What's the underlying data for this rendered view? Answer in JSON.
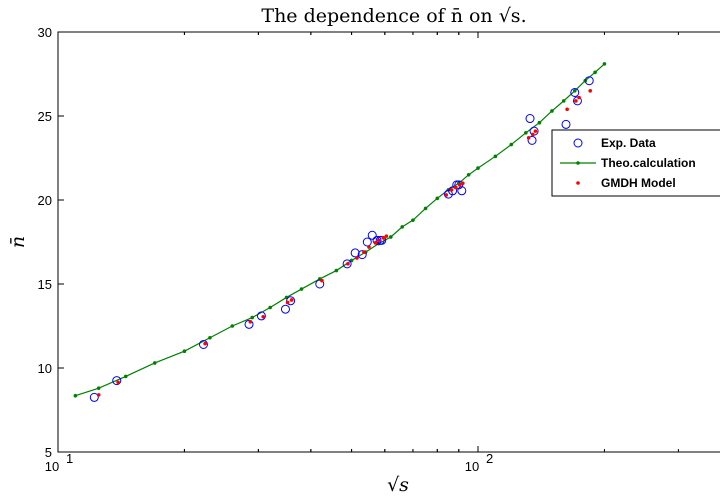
{
  "chart_data": {
    "type": "line",
    "title": "The dependence of n̄ on √s.",
    "xlabel": "√s",
    "ylabel": "n̄",
    "xscale": "log",
    "xlim": [
      10,
      500
    ],
    "ylim": [
      5,
      30
    ],
    "grid": false,
    "legend_position": "right",
    "x_ticks": [
      {
        "value": 10,
        "base": "10",
        "exp": "1"
      },
      {
        "value": 100,
        "base": "10",
        "exp": "2"
      }
    ],
    "y_ticks": [
      5,
      10,
      15,
      20,
      25,
      30
    ],
    "series": [
      {
        "name": "Exp. Data",
        "style": "circle",
        "color": "#0000ff",
        "x": [
          12.2,
          13.8,
          22.2,
          28.5,
          30.5,
          34.8,
          35.8,
          42.0,
          48.8,
          51.0,
          53.0,
          54.5,
          56.0,
          57.5,
          58.5,
          59.0,
          85.0,
          87.0,
          89.0,
          90.0,
          91.5,
          133.0,
          134.5,
          136.0,
          162.0,
          170.0,
          172.5,
          184.0
        ],
        "y": [
          8.25,
          9.25,
          11.4,
          12.6,
          13.1,
          13.5,
          14.0,
          15.0,
          16.2,
          16.85,
          16.75,
          17.5,
          17.9,
          17.6,
          17.6,
          17.6,
          20.35,
          20.55,
          20.9,
          20.9,
          20.55,
          24.85,
          23.55,
          24.1,
          24.5,
          26.4,
          25.9,
          27.1
        ]
      },
      {
        "name": "Theo.calculation",
        "style": "line-dot",
        "color": "#008000",
        "x": [
          11.0,
          12.5,
          14.5,
          17.0,
          20.0,
          23.0,
          26.0,
          29.0,
          32.0,
          35.0,
          38.0,
          42.0,
          46.0,
          50.0,
          54.0,
          58.0,
          62.0,
          66.0,
          70.0,
          75.0,
          80.0,
          85.0,
          90.0,
          95.0,
          100.0,
          110.0,
          120.0,
          130.0,
          140.0,
          150.0,
          160.0,
          170.0,
          180.0,
          190.0,
          200.0
        ],
        "y": [
          8.35,
          8.8,
          9.5,
          10.3,
          11.0,
          11.8,
          12.5,
          13.0,
          13.6,
          14.2,
          14.7,
          15.3,
          15.8,
          16.4,
          16.9,
          17.4,
          17.8,
          18.4,
          18.8,
          19.5,
          20.1,
          20.6,
          21.0,
          21.5,
          21.9,
          22.6,
          23.3,
          24.0,
          24.6,
          25.3,
          25.9,
          26.5,
          27.1,
          27.6,
          28.1
        ]
      },
      {
        "name": "GMDH Model",
        "style": "dot",
        "color": "#ff0000",
        "x": [
          12.5,
          13.9,
          22.4,
          28.7,
          30.8,
          35.2,
          36.0,
          42.5,
          49.0,
          51.5,
          53.5,
          55.0,
          57.0,
          58.0,
          59.5,
          60.5,
          84.0,
          86.5,
          88.5,
          90.5,
          92.0,
          132.0,
          135.0,
          137.0,
          163.0,
          171.0,
          174.0,
          185.0
        ],
        "y": [
          8.4,
          9.15,
          11.45,
          12.75,
          13.05,
          13.9,
          14.05,
          15.2,
          16.2,
          16.55,
          16.9,
          17.2,
          17.45,
          17.6,
          17.75,
          17.85,
          20.3,
          20.6,
          20.75,
          20.9,
          21.0,
          23.7,
          23.9,
          24.1,
          25.4,
          25.9,
          26.1,
          26.5
        ]
      }
    ]
  }
}
